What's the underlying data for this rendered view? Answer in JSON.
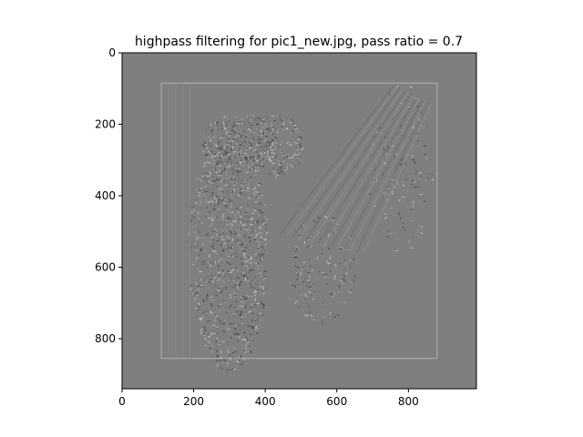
{
  "figure": {
    "title": "highpass filtering for pic1_new.jpg, pass ratio = 0.7"
  },
  "image": {
    "description_type": "grayscale high-pass filtered photograph",
    "background_gray": "#7f7f7f",
    "frame_color": "#a8a8a8"
  },
  "chart_data": {
    "type": "image",
    "title": "highpass filtering for pic1_new.jpg, pass ratio = 0.7",
    "xlabel": "",
    "ylabel": "",
    "xlim": [
      0,
      990
    ],
    "ylim": [
      940,
      0
    ],
    "x_ticks": [
      0,
      200,
      400,
      600,
      800
    ],
    "y_ticks": [
      0,
      200,
      400,
      600,
      800
    ],
    "x_tick_labels": [
      "0",
      "200",
      "400",
      "600",
      "800"
    ],
    "y_tick_labels": [
      "0",
      "200",
      "400",
      "600",
      "800"
    ],
    "grid": false
  }
}
